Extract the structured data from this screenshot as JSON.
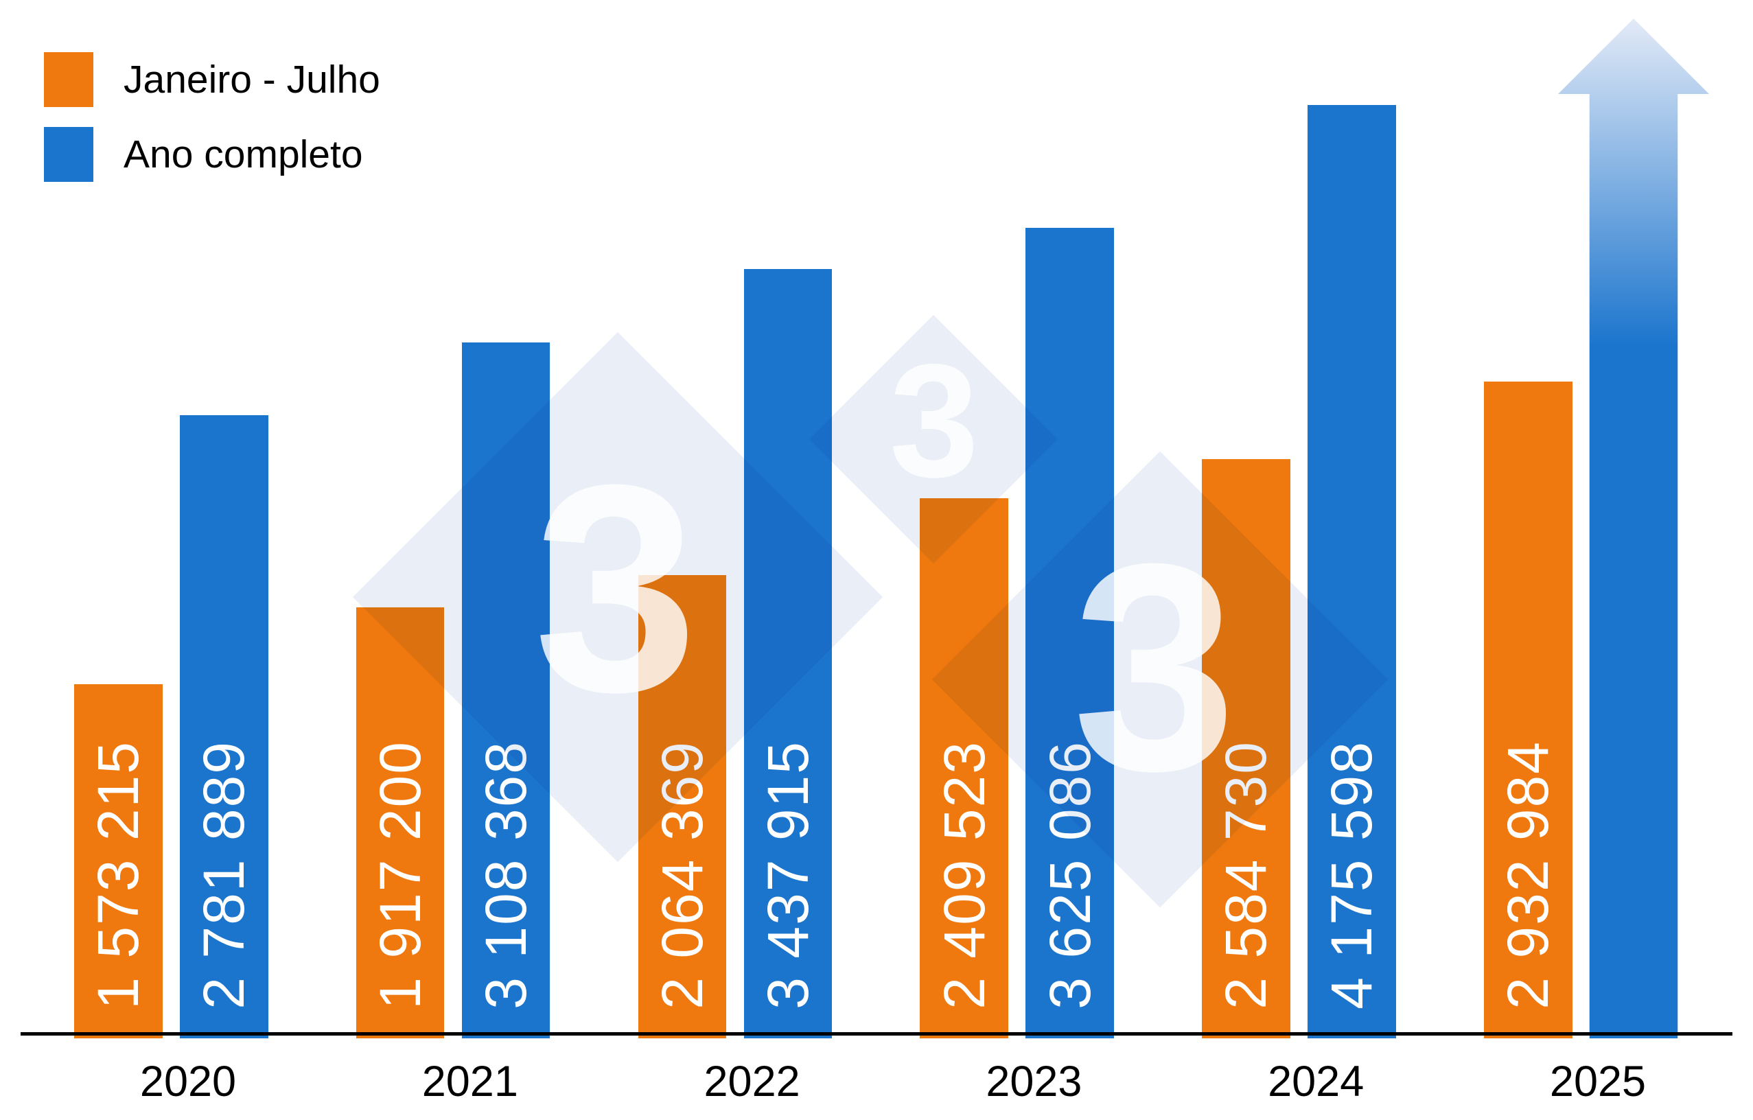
{
  "legend": {
    "items": [
      {
        "label": "Janeiro - Julho",
        "color": "#F0790F"
      },
      {
        "label": "Ano completo",
        "color": "#1C75CD"
      }
    ]
  },
  "watermark": {
    "glyph": "3",
    "diamond_color": "#E9EEF7"
  },
  "chart_data": {
    "type": "bar",
    "categories": [
      "2020",
      "2021",
      "2022",
      "2023",
      "2024",
      "2025"
    ],
    "series": [
      {
        "name": "Janeiro - Julho",
        "color": "#F0790F",
        "values": [
          1573215,
          1917200,
          2064369,
          2409523,
          2584730,
          2932984
        ]
      },
      {
        "name": "Ano completo",
        "color": "#1C75CD",
        "values": [
          2781889,
          3108368,
          3437915,
          3625086,
          4175598,
          null
        ]
      }
    ],
    "value_labels_visible": true,
    "value_label_thousands_separator": " ",
    "value_label_color": "#ffffff",
    "projection": {
      "category": "2025",
      "series": "Ano completo",
      "style": "upward-arrow-gradient",
      "gradient_top_color": "#E3EAF7",
      "gradient_bottom_color": "#1C75CD"
    },
    "title": "",
    "xlabel": "",
    "ylabel": "",
    "ylim": [
      0,
      4400000
    ],
    "grid": false,
    "legend_position": "top-left",
    "axis_line_color": "#000000"
  }
}
